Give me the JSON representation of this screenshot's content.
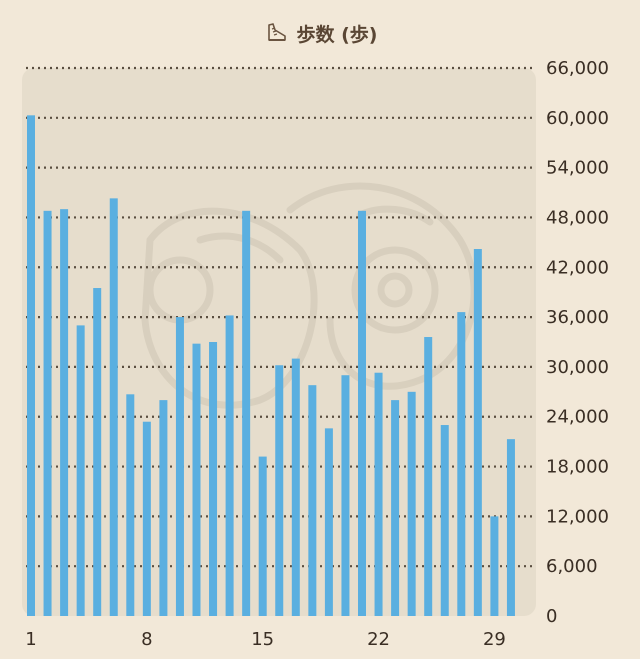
{
  "chart_data": {
    "type": "bar",
    "title": "歩数 (歩)",
    "title_icon": "sneaker-icon",
    "x": [
      1,
      2,
      3,
      4,
      5,
      6,
      7,
      8,
      9,
      10,
      11,
      12,
      13,
      14,
      15,
      16,
      17,
      18,
      19,
      20,
      21,
      22,
      23,
      24,
      25,
      26,
      27,
      28,
      29,
      30
    ],
    "x_tick_labels": [
      "1",
      "8",
      "15",
      "22",
      "29"
    ],
    "x_tick_values": [
      1,
      8,
      15,
      22,
      29
    ],
    "values": [
      60300,
      48800,
      49000,
      35000,
      39500,
      50300,
      26700,
      23400,
      26000,
      36000,
      32800,
      33000,
      36200,
      48800,
      19200,
      30200,
      31000,
      27800,
      22600,
      29000,
      48800,
      29300,
      26000,
      27000,
      33600,
      23000,
      36600,
      44200,
      12000,
      21300
    ],
    "y_ticks": [
      "0",
      "6,000",
      "12,000",
      "18,000",
      "24,000",
      "30,000",
      "36,000",
      "42,000",
      "48,000",
      "54,000",
      "60,000",
      "66,000"
    ],
    "ylim": [
      0,
      66000
    ],
    "grid": true,
    "colors": {
      "bar": "#5aafe0",
      "plot_bg": "#e6ddcc",
      "page_bg": "#f2e8d8",
      "grid": "#5a4e40",
      "text": "#3a2e24"
    }
  }
}
